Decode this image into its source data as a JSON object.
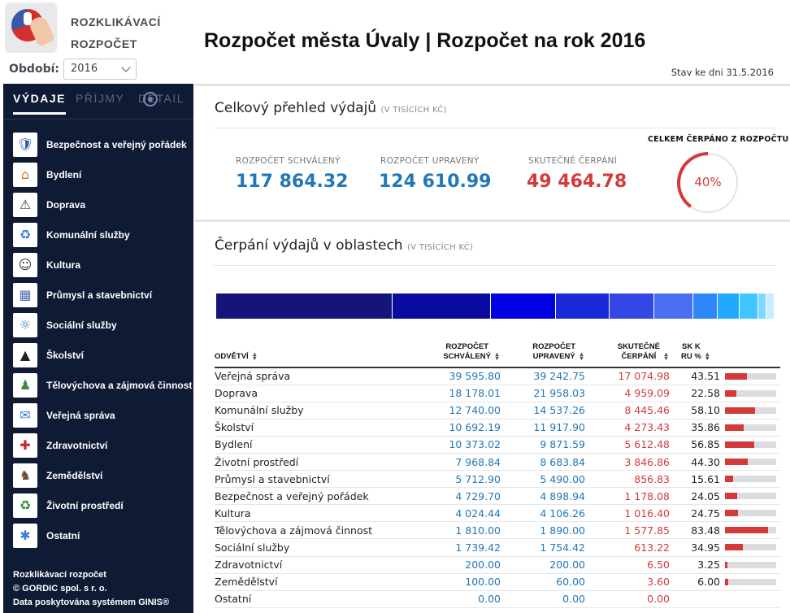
{
  "app": {
    "name_line1": "ROZKLIKÁVACÍ",
    "name_line2": "ROZPOČET",
    "period_label": "Období:",
    "period_value": "2016",
    "title": "Rozpočet města Úvaly | Rozpočet na rok 2016",
    "as_of": "Stav ke dni 31.5.2016"
  },
  "sidebar": {
    "tabs": [
      "VÝDAJE",
      "PŘÍJMY",
      "DETAIL"
    ],
    "items": [
      {
        "label": "Bezpečnost a veřejný pořádek",
        "icon": "police-icon"
      },
      {
        "label": "Bydlení",
        "icon": "house-icon"
      },
      {
        "label": "Doprava",
        "icon": "traffic-light-icon"
      },
      {
        "label": "Komunální služby",
        "icon": "municipal-icon"
      },
      {
        "label": "Kultura",
        "icon": "theater-masks-icon"
      },
      {
        "label": "Průmysl a stavebnictví",
        "icon": "industry-icon"
      },
      {
        "label": "Sociální služby",
        "icon": "social-icon"
      },
      {
        "label": "Školství",
        "icon": "graduation-cap-icon"
      },
      {
        "label": "Tělovýchova a zájmová činnost",
        "icon": "athlete-icon"
      },
      {
        "label": "Veřejná správa",
        "icon": "public-admin-icon"
      },
      {
        "label": "Zdravotnictví",
        "icon": "health-icon"
      },
      {
        "label": "Zemědělství",
        "icon": "cow-icon"
      },
      {
        "label": "Životní prostředí",
        "icon": "recycle-icon"
      },
      {
        "label": "Ostatní",
        "icon": "other-icon"
      }
    ],
    "footer": {
      "line1": "Rozklikávací rozpočet",
      "line2": "© GORDIC spol. s r. o.",
      "line3": "Data poskytována systémem GINIS®"
    }
  },
  "overview": {
    "title": "Celkový přehled výdajů",
    "unit": "(V TISÍCÍCH KČ)",
    "approved_label": "ROZPOČET SCHVÁLENÝ",
    "approved_value": "117 864.32",
    "adjusted_label": "ROZPOČET UPRAVENÝ",
    "adjusted_value": "124 610.99",
    "actual_label": "SKUTEČNÉ ČERPÁNÍ",
    "actual_value": "49 464.78",
    "gauge_title": "CELKEM ČERPÁNO Z ROZPOČTU",
    "gauge_text": "40%",
    "gauge_fraction": 0.4,
    "colors": {
      "blue": "#2177b9",
      "red": "#d43a3a"
    }
  },
  "areas": {
    "title": "Čerpání výdajů v oblastech",
    "unit": "(V TISÍCÍCH KČ)",
    "stack_colors": [
      "#14147a",
      "#0b0ba0",
      "#0000e0",
      "#1a2ad6",
      "#3346e6",
      "#4a6ef2",
      "#2f86f7",
      "#21a8ff",
      "#41c6ff",
      "#7fd6ff",
      "#c8ecff",
      "#0000c8"
    ]
  },
  "table": {
    "headers": {
      "name": "ODVĚTVÍ",
      "approved_1": "ROZPOČET",
      "approved_2": "SCHVÁLENÝ",
      "adjusted_1": "ROZPOČET",
      "adjusted_2": "UPRAVENÝ",
      "actual_1": "SKUTEČNÉ",
      "actual_2": "ČERPÁNÍ",
      "pct_1": "SK K",
      "pct_2": "RU %"
    },
    "rows": [
      {
        "name": "Veřejná správa",
        "approved": "39 595.80",
        "adjusted": "39 242.75",
        "actual": "17 074.98",
        "pct": "43.51",
        "frac": 0.4351
      },
      {
        "name": "Doprava",
        "approved": "18 178.01",
        "adjusted": "21 958.03",
        "actual": "4 959.09",
        "pct": "22.58",
        "frac": 0.2258
      },
      {
        "name": "Komunální služby",
        "approved": "12 740.00",
        "adjusted": "14 537.26",
        "actual": "8 445.46",
        "pct": "58.10",
        "frac": 0.581
      },
      {
        "name": "Školství",
        "approved": "10 692.19",
        "adjusted": "11 917.90",
        "actual": "4 273.43",
        "pct": "35.86",
        "frac": 0.3586
      },
      {
        "name": "Bydlení",
        "approved": "10 373.02",
        "adjusted": "9 871.59",
        "actual": "5 612.48",
        "pct": "56.85",
        "frac": 0.5685
      },
      {
        "name": "Životní prostředí",
        "approved": "7 968.84",
        "adjusted": "8 683.84",
        "actual": "3 846.86",
        "pct": "44.30",
        "frac": 0.443
      },
      {
        "name": "Průmysl a stavebnictví",
        "approved": "5 712.90",
        "adjusted": "5 490.00",
        "actual": "856.83",
        "pct": "15.61",
        "frac": 0.1561
      },
      {
        "name": "Bezpečnost a veřejný pořádek",
        "approved": "4 729.70",
        "adjusted": "4 898.94",
        "actual": "1 178.08",
        "pct": "24.05",
        "frac": 0.2405
      },
      {
        "name": "Kultura",
        "approved": "4 024.44",
        "adjusted": "4 106.26",
        "actual": "1 016.40",
        "pct": "24.75",
        "frac": 0.2475
      },
      {
        "name": "Tělovýchova a zájmová činnost",
        "approved": "1 810.00",
        "adjusted": "1 890.00",
        "actual": "1 577.85",
        "pct": "83.48",
        "frac": 0.8348
      },
      {
        "name": "Sociální služby",
        "approved": "1 739.42",
        "adjusted": "1 754.42",
        "actual": "613.22",
        "pct": "34.95",
        "frac": 0.3495
      },
      {
        "name": "Zdravotnictví",
        "approved": "200.00",
        "adjusted": "200.00",
        "actual": "6.50",
        "pct": "3.25",
        "frac": 0.0325
      },
      {
        "name": "Zemědělství",
        "approved": "100.00",
        "adjusted": "60.00",
        "actual": "3.60",
        "pct": "6.00",
        "frac": 0.06
      },
      {
        "name": "Ostatní",
        "approved": "0.00",
        "adjusted": "0.00",
        "actual": "0.00",
        "pct": "",
        "frac": 0
      }
    ]
  }
}
